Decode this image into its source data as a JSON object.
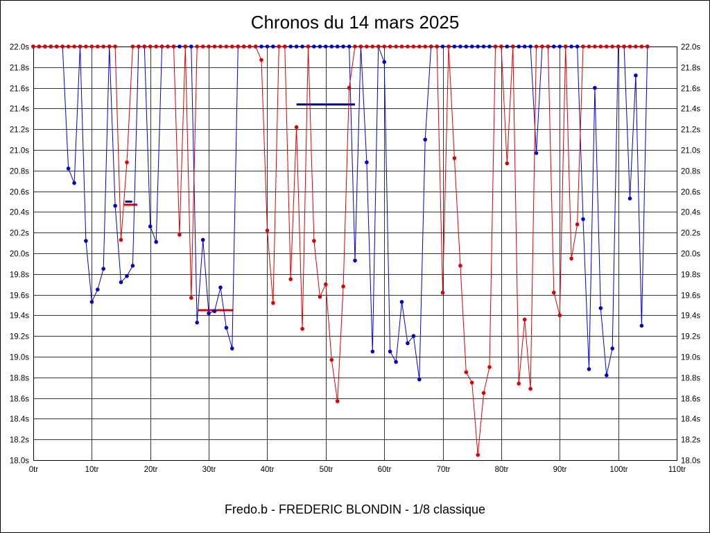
{
  "chart": {
    "title": "Chronos du 14 mars 2025",
    "footer": "Fredo.b - FREDERIC BLONDIN - 1/8 classique"
  },
  "chart_data": {
    "type": "line",
    "title": "Chronos du 14 mars 2025",
    "subtitle": "Fredo.b - FREDERIC BLONDIN - 1/8 classique",
    "xlabel": "",
    "ylabel": "",
    "x_unit": "tr",
    "y_unit": "s",
    "xlim": [
      0,
      110
    ],
    "ylim": [
      18.0,
      22.0
    ],
    "x_tick_step": 10,
    "y_tick_step": 0.2,
    "clamp_max": 22.0,
    "grid": true,
    "legend": "none",
    "x_ticks": [
      "0tr",
      "10tr",
      "20tr",
      "30tr",
      "40tr",
      "50tr",
      "60tr",
      "70tr",
      "80tr",
      "90tr",
      "100tr",
      "110tr"
    ],
    "y_ticks": [
      "22.0s",
      "21.8s",
      "21.6s",
      "21.4s",
      "21.2s",
      "21.0s",
      "20.8s",
      "20.6s",
      "20.4s",
      "20.2s",
      "20.0s",
      "19.8s",
      "19.6s",
      "19.4s",
      "19.2s",
      "19.0s",
      "18.8s",
      "18.6s",
      "18.4s",
      "18.2s",
      "18.0s"
    ],
    "series": [
      {
        "name": "pilot-blue",
        "color": "#0000cc",
        "values": [
          22,
          22,
          22,
          22,
          22,
          22,
          20.82,
          20.68,
          22,
          20.12,
          19.53,
          19.65,
          19.85,
          22,
          20.46,
          19.72,
          19.78,
          19.88,
          22,
          22,
          20.26,
          20.11,
          22,
          22,
          22,
          22,
          22,
          22,
          19.33,
          20.13,
          19.42,
          19.44,
          19.67,
          19.28,
          19.08,
          22,
          22,
          22,
          22,
          22,
          22,
          22,
          22,
          22,
          22,
          22,
          22,
          22,
          22,
          22,
          22,
          22,
          22,
          22,
          22,
          19.93,
          22,
          20.88,
          19.05,
          22,
          21.85,
          19.05,
          18.95,
          19.53,
          19.13,
          19.2,
          18.78,
          21.1,
          22,
          22,
          22,
          22,
          22,
          22,
          22,
          22,
          22,
          22,
          22,
          22,
          22,
          22,
          22,
          22,
          22,
          22,
          20.97,
          22,
          22,
          22,
          22,
          22,
          22,
          22,
          20.33,
          18.88,
          21.6,
          19.47,
          18.82,
          19.08,
          22,
          22,
          20.53,
          21.72,
          19.3,
          22
        ]
      },
      {
        "name": "pilot-red",
        "color": "#dd0000",
        "values": [
          22,
          22,
          22,
          22,
          22,
          22,
          22,
          22,
          22,
          22,
          22,
          22,
          22,
          22,
          22,
          20.13,
          20.88,
          22,
          22,
          22,
          22,
          22,
          22,
          22,
          22,
          20.18,
          22,
          19.57,
          22,
          22,
          22,
          22,
          22,
          22,
          22,
          22,
          22,
          22,
          22,
          21.87,
          20.22,
          19.52,
          22,
          22,
          19.75,
          21.22,
          19.27,
          22,
          20.12,
          19.58,
          19.7,
          18.97,
          18.57,
          19.68,
          21.6,
          22,
          22,
          22,
          22,
          22,
          22,
          22,
          22,
          22,
          22,
          22,
          22,
          22,
          22,
          22,
          19.62,
          22,
          20.92,
          19.88,
          18.85,
          18.75,
          18.05,
          18.65,
          18.9,
          22,
          22,
          20.87,
          22,
          18.74,
          19.36,
          18.69,
          22,
          22,
          22,
          19.62,
          19.4,
          22,
          19.95,
          20.28,
          22,
          22,
          22,
          22,
          22,
          22,
          22,
          22,
          22,
          22,
          22,
          22
        ]
      }
    ],
    "segments": [
      {
        "name": "best-average-blue",
        "color": "#0000cc",
        "x1": 45.0,
        "x2": 55.0,
        "value": 21.44
      },
      {
        "name": "best-average-red",
        "color": "#dd0000",
        "x1": 28.2,
        "x2": 34.2,
        "value": 19.45
      },
      {
        "name": "short-average-blue",
        "color": "#0000cc",
        "x1": 15.7,
        "x2": 16.9,
        "value": 20.5
      },
      {
        "name": "short-average-red",
        "color": "#dd0000",
        "x1": 15.5,
        "x2": 17.8,
        "value": 20.47
      }
    ]
  }
}
